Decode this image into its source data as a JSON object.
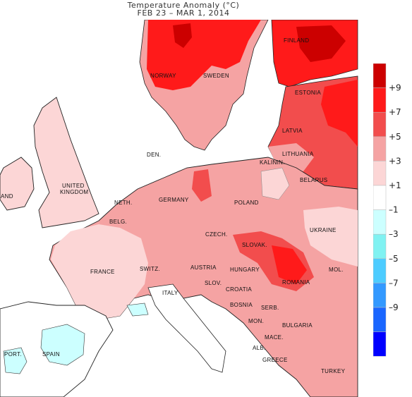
{
  "title": "Temperature Anomaly (°C)",
  "subtitle": "FEB 23 – MAR  1, 2014",
  "legend": {
    "colors": [
      "#cc0000",
      "#ff1a1a",
      "#f24d4d",
      "#f5a3a3",
      "#fcd6d6",
      "#ffffff",
      "#ccffff",
      "#80f2f2",
      "#4dccff",
      "#3399ff",
      "#1a66ff",
      "#0000ff"
    ],
    "labels": [
      "+9",
      "+7",
      "+5",
      "+3",
      "+1",
      "–1",
      "–3",
      "–5",
      "–7",
      "–9"
    ]
  },
  "countries": [
    {
      "name": "FINLAND"
    },
    {
      "name": "NORWAY"
    },
    {
      "name": "SWEDEN"
    },
    {
      "name": "ESTONIA"
    },
    {
      "name": "LATVIA"
    },
    {
      "name": "LITHUANIA"
    },
    {
      "name": "KALININ."
    },
    {
      "name": "BELARUS"
    },
    {
      "name": "DEN."
    },
    {
      "name": "UNITED"
    },
    {
      "name": "KINGDOM"
    },
    {
      "name": "IRELAND"
    },
    {
      "name": "NETH."
    },
    {
      "name": "BELG."
    },
    {
      "name": "GERMANY"
    },
    {
      "name": "POLAND"
    },
    {
      "name": "CZECH."
    },
    {
      "name": "SLOVAK."
    },
    {
      "name": "UKRAINE"
    },
    {
      "name": "FRANCE"
    },
    {
      "name": "SWITZ."
    },
    {
      "name": "AUSTRIA"
    },
    {
      "name": "HUNGARY"
    },
    {
      "name": "MOL."
    },
    {
      "name": "ROMANIA"
    },
    {
      "name": "ITALY"
    },
    {
      "name": "SLOV."
    },
    {
      "name": "CROATIA"
    },
    {
      "name": "BOSNIA"
    },
    {
      "name": "SERB."
    },
    {
      "name": "MON."
    },
    {
      "name": "BULGARIA"
    },
    {
      "name": "MACE."
    },
    {
      "name": "ALB."
    },
    {
      "name": "GREECE"
    },
    {
      "name": "TURKEY"
    },
    {
      "name": "PORT."
    },
    {
      "name": "SPAIN"
    }
  ]
}
